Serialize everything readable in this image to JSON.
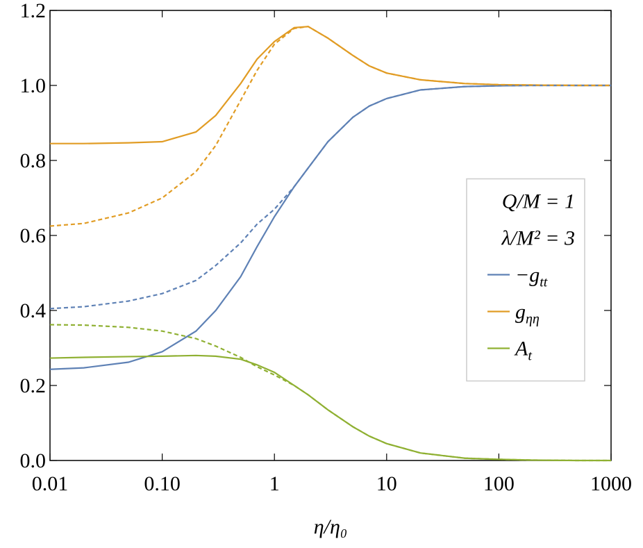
{
  "chart_data": {
    "type": "line",
    "x_label": "η/η₀",
    "xscale": "log",
    "xlim": [
      0.01,
      1000
    ],
    "xticks": [
      0.01,
      {
        "value": 0.1,
        "label": "0.10"
      },
      1,
      10,
      100,
      1000
    ],
    "ylim": [
      0,
      1.2
    ],
    "yticks": [
      {
        "value": 0,
        "label": "0.0"
      },
      {
        "value": 0.2,
        "label": "0.2"
      },
      {
        "value": 0.4,
        "label": "0.4"
      },
      {
        "value": 0.6,
        "label": "0.6"
      },
      {
        "value": 0.8,
        "label": "0.8"
      },
      {
        "value": 1,
        "label": "1.0"
      },
      {
        "value": 1.2,
        "label": "1.2"
      }
    ],
    "legend_position": "right",
    "legend_lines": [
      "Q/M = 1",
      "λ/M² = 3"
    ],
    "x": [
      0.01,
      0.02,
      0.05,
      0.1,
      0.2,
      0.3,
      0.5,
      0.7,
      1,
      1.5,
      2,
      3,
      5,
      7,
      10,
      20,
      50,
      100,
      200,
      500,
      1000
    ],
    "series": [
      {
        "name": "−g_tt",
        "color": "#5e81b5",
        "dashed": false,
        "values": [
          0.243,
          0.247,
          0.262,
          0.29,
          0.345,
          0.4,
          0.49,
          0.57,
          0.65,
          0.73,
          0.78,
          0.85,
          0.915,
          0.945,
          0.965,
          0.988,
          0.997,
          0.999,
          1.0,
          1.0,
          1.0
        ]
      },
      {
        "name": "g_ηη",
        "color": "#e19c24",
        "dashed": false,
        "values": [
          0.845,
          0.845,
          0.847,
          0.85,
          0.876,
          0.92,
          1.005,
          1.07,
          1.117,
          1.154,
          1.157,
          1.126,
          1.08,
          1.052,
          1.033,
          1.015,
          1.005,
          1.002,
          1.001,
          1.0,
          1.0
        ]
      },
      {
        "name": "A_t",
        "color": "#8fb032",
        "dashed": false,
        "values": [
          0.273,
          0.275,
          0.277,
          0.278,
          0.28,
          0.278,
          0.27,
          0.255,
          0.235,
          0.2,
          0.175,
          0.135,
          0.09,
          0.065,
          0.045,
          0.02,
          0.006,
          0.003,
          0.001,
          0.0,
          0.0
        ]
      },
      {
        "color": "#5e81b5",
        "dashed": true,
        "values": [
          0.405,
          0.41,
          0.425,
          0.445,
          0.48,
          0.52,
          0.58,
          0.63,
          0.67,
          0.73,
          0.78,
          0.85,
          0.915,
          0.945,
          0.965,
          0.988,
          0.997,
          0.999,
          1.0,
          1.0,
          1.0
        ]
      },
      {
        "color": "#e19c24",
        "dashed": true,
        "values": [
          0.625,
          0.632,
          0.66,
          0.7,
          0.77,
          0.84,
          0.96,
          1.04,
          1.11,
          1.152,
          1.157,
          1.126,
          1.08,
          1.052,
          1.033,
          1.015,
          1.005,
          1.002,
          1.001,
          1.0,
          1.0
        ]
      },
      {
        "color": "#8fb032",
        "dashed": true,
        "values": [
          0.362,
          0.361,
          0.355,
          0.345,
          0.325,
          0.305,
          0.275,
          0.25,
          0.228,
          0.2,
          0.175,
          0.135,
          0.09,
          0.065,
          0.045,
          0.02,
          0.006,
          0.003,
          0.001,
          0.0,
          0.0
        ]
      }
    ]
  }
}
